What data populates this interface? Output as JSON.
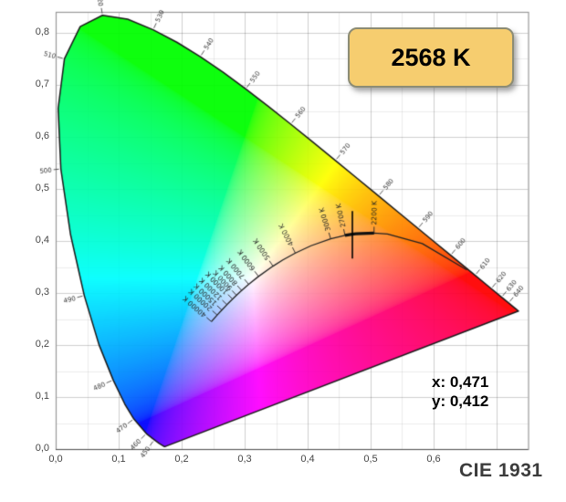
{
  "colors": {
    "badge_bg": "#f6cd6f",
    "badge_border": "#8c8c75",
    "title_color": "#3c3c3c",
    "axis_label_color": "#454545",
    "locus_outline": "#1a1a1a",
    "planckian_stroke": "#222222",
    "marker_color": "#000000"
  },
  "readout": {
    "x_text": "x: 0,471",
    "y_text": "y: 0,412"
  },
  "chart_data": {
    "type": "chromaticity-diagram",
    "title": "CIE 1931",
    "badge": "2568 K",
    "xlabel": "",
    "ylabel": "",
    "grid": "on",
    "grid_minor_step": 0.05,
    "grid_major_step": 0.1,
    "axes": {
      "xlim": [
        0,
        0.75
      ],
      "ylim": [
        0,
        0.84
      ],
      "x_ticks": [
        {
          "v": 0.0,
          "label": "0,0"
        },
        {
          "v": 0.1,
          "label": "0,1"
        },
        {
          "v": 0.2,
          "label": "0,2"
        },
        {
          "v": 0.3,
          "label": "0,3"
        },
        {
          "v": 0.4,
          "label": "0,4"
        },
        {
          "v": 0.5,
          "label": "0,5"
        },
        {
          "v": 0.6,
          "label": "0,6"
        }
      ],
      "y_ticks": [
        {
          "v": 0.0,
          "label": "0,0"
        },
        {
          "v": 0.1,
          "label": "0,1"
        },
        {
          "v": 0.2,
          "label": "0,2"
        },
        {
          "v": 0.3,
          "label": "0,3"
        },
        {
          "v": 0.4,
          "label": "0,4"
        },
        {
          "v": 0.5,
          "label": "0,5"
        },
        {
          "v": 0.6,
          "label": "0,6"
        },
        {
          "v": 0.7,
          "label": "0,7"
        },
        {
          "v": 0.8,
          "label": "0,8"
        }
      ]
    },
    "selected_point": {
      "x": 0.471,
      "y": 0.412,
      "cct_k": 2568
    },
    "highlight_range_k": [
      2200,
      2700
    ],
    "spectral_locus": [
      [
        380,
        0.1741,
        0.005
      ],
      [
        410,
        0.1726,
        0.0048
      ],
      [
        440,
        0.1644,
        0.0109
      ],
      [
        450,
        0.1566,
        0.0177
      ],
      [
        460,
        0.144,
        0.0297
      ],
      [
        470,
        0.1241,
        0.0578
      ],
      [
        475,
        0.1096,
        0.0868
      ],
      [
        480,
        0.0913,
        0.1327
      ],
      [
        485,
        0.0687,
        0.2007
      ],
      [
        490,
        0.0454,
        0.295
      ],
      [
        495,
        0.0235,
        0.4127
      ],
      [
        500,
        0.0082,
        0.5384
      ],
      [
        505,
        0.0039,
        0.6548
      ],
      [
        510,
        0.0139,
        0.7502
      ],
      [
        515,
        0.0389,
        0.812
      ],
      [
        520,
        0.0743,
        0.8338
      ],
      [
        525,
        0.1142,
        0.8262
      ],
      [
        530,
        0.1547,
        0.8059
      ],
      [
        535,
        0.1929,
        0.7816
      ],
      [
        540,
        0.2296,
        0.7543
      ],
      [
        545,
        0.2658,
        0.7243
      ],
      [
        550,
        0.3016,
        0.6923
      ],
      [
        555,
        0.3373,
        0.6589
      ],
      [
        560,
        0.3731,
        0.6245
      ],
      [
        565,
        0.4087,
        0.5896
      ],
      [
        570,
        0.4441,
        0.5547
      ],
      [
        575,
        0.4788,
        0.5202
      ],
      [
        580,
        0.5125,
        0.4866
      ],
      [
        585,
        0.5448,
        0.4544
      ],
      [
        590,
        0.5752,
        0.4242
      ],
      [
        595,
        0.6029,
        0.3965
      ],
      [
        600,
        0.627,
        0.3725
      ],
      [
        605,
        0.6482,
        0.3514
      ],
      [
        610,
        0.6658,
        0.334
      ],
      [
        615,
        0.6801,
        0.3197
      ],
      [
        620,
        0.6915,
        0.3083
      ],
      [
        630,
        0.7079,
        0.292
      ],
      [
        640,
        0.719,
        0.2809
      ],
      [
        650,
        0.726,
        0.274
      ],
      [
        660,
        0.73,
        0.27
      ],
      [
        680,
        0.7334,
        0.2666
      ],
      [
        700,
        0.7347,
        0.2653
      ]
    ],
    "wavelength_tick_labels": [
      450,
      460,
      470,
      480,
      490,
      500,
      510,
      520,
      530,
      540,
      550,
      560,
      570,
      580,
      590,
      600,
      610,
      620,
      630,
      640
    ],
    "planckian_locus": [
      [
        1000,
        0.6528,
        0.3444
      ],
      [
        1500,
        0.582,
        0.395
      ],
      [
        2000,
        0.5267,
        0.4133
      ],
      [
        2200,
        0.5054,
        0.4151
      ],
      [
        2500,
        0.4765,
        0.4137
      ],
      [
        2568,
        0.4704,
        0.4128
      ],
      [
        2700,
        0.4593,
        0.4107
      ],
      [
        3000,
        0.4366,
        0.4042
      ],
      [
        3500,
        0.4053,
        0.3908
      ],
      [
        4000,
        0.3805,
        0.3767
      ],
      [
        4500,
        0.3607,
        0.3635
      ],
      [
        5000,
        0.345,
        0.3516
      ],
      [
        6000,
        0.322,
        0.3318
      ],
      [
        7000,
        0.3064,
        0.3166
      ],
      [
        8000,
        0.2952,
        0.3048
      ],
      [
        9000,
        0.287,
        0.2956
      ],
      [
        10000,
        0.2807,
        0.2883
      ],
      [
        12000,
        0.2718,
        0.2775
      ],
      [
        15000,
        0.2637,
        0.2672
      ],
      [
        20000,
        0.2564,
        0.2576
      ],
      [
        40000,
        0.2472,
        0.2449
      ]
    ],
    "temperature_tick_labels": [
      {
        "t": 2200,
        "label": "2200 K"
      },
      {
        "t": 2700,
        "label": "2700 K"
      },
      {
        "t": 3000,
        "label": "3000 K"
      },
      {
        "t": 4000,
        "label": "4000 K"
      },
      {
        "t": 5000,
        "label": "5000 K"
      },
      {
        "t": 6000,
        "label": "6000 K"
      },
      {
        "t": 7000,
        "label": "7000 K"
      },
      {
        "t": 8000,
        "label": "8000 K"
      },
      {
        "t": 9000,
        "label": "9000 K"
      },
      {
        "t": 10000,
        "label": "10000 K"
      },
      {
        "t": 12000,
        "label": "12000 K"
      },
      {
        "t": 15000,
        "label": "15000 K"
      },
      {
        "t": 20000,
        "label": "20000 K"
      },
      {
        "t": 40000,
        "label": "40000 K"
      }
    ]
  }
}
